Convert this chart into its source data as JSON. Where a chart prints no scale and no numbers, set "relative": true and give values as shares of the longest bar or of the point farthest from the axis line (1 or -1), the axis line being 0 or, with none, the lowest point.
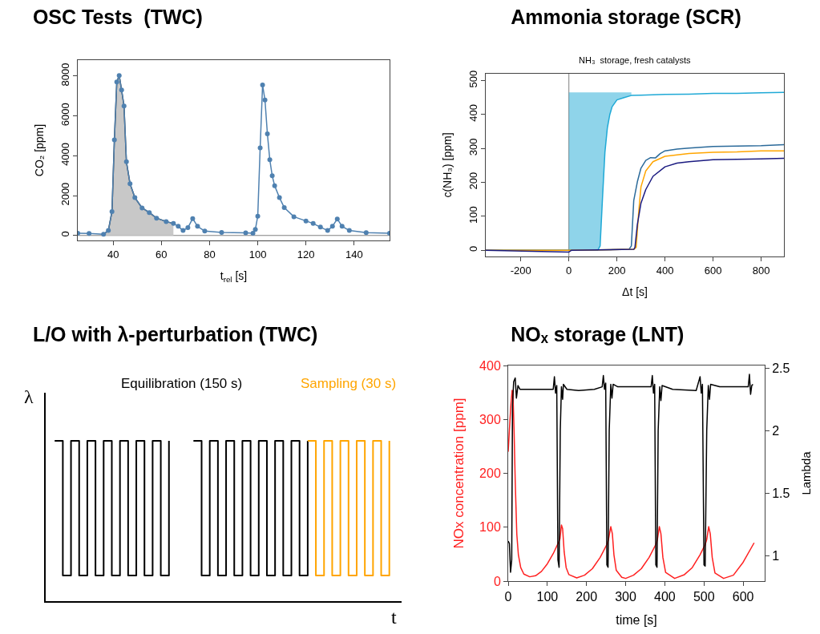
{
  "chart_data": [
    {
      "type": "line",
      "title": "OSC Tests  (TWC)",
      "xlabel": "t$_{rel}$ [s]",
      "ylabel": "CO₂ [ppm]",
      "xlim": [
        25.3,
        154.7
      ],
      "ylim": [
        -250,
        8800
      ],
      "xticks": [
        40,
        60,
        80,
        100,
        120,
        140
      ],
      "yticks": [
        0,
        2000,
        4000,
        6000,
        8000
      ],
      "grid": false,
      "marker": "circle",
      "ref_lines": [
        {
          "axis": "y",
          "value": 0,
          "color": "#808080"
        }
      ],
      "series": [
        {
          "type": "area",
          "marker": "none",
          "color": "#c8c8c8",
          "x": [
            36,
            38,
            39.5,
            40.5,
            41.5,
            42.5,
            43.5,
            44.5,
            45.5,
            47,
            49,
            52,
            55,
            58,
            62,
            65
          ],
          "values": [
            60,
            250,
            1200,
            4800,
            7700,
            8030,
            7300,
            6500,
            3700,
            2600,
            1900,
            1380,
            1150,
            870,
            700,
            600
          ]
        },
        {
          "type": "line",
          "color": "#4f81b0",
          "x": [
            25.3,
            30,
            36,
            38,
            39.5,
            40.5,
            41.5,
            42.5,
            43.5,
            44.5,
            45.5,
            47,
            49,
            52,
            55,
            58,
            62,
            65,
            67,
            69,
            71,
            73,
            75,
            78,
            85,
            95,
            98,
            99,
            100,
            101,
            102,
            103,
            104,
            105,
            106,
            107,
            109,
            111,
            115,
            120,
            123,
            126,
            129,
            131,
            133,
            135,
            138,
            145,
            154.7
          ],
          "values": [
            110,
            100,
            60,
            250,
            1200,
            4800,
            7700,
            8030,
            7300,
            6500,
            3700,
            2600,
            1900,
            1380,
            1150,
            870,
            700,
            600,
            460,
            250,
            390,
            850,
            460,
            220,
            150,
            130,
            110,
            300,
            970,
            4400,
            7550,
            6800,
            5100,
            3800,
            3000,
            2500,
            1900,
            1400,
            940,
            730,
            600,
            420,
            250,
            460,
            830,
            460,
            250,
            140,
            110
          ]
        }
      ]
    },
    {
      "type": "line",
      "title": "Ammonia storage (SCR)",
      "subtitle": "NH₃  storage, fresh catalysts",
      "xlabel": "Δt [s]",
      "ylabel": "c(NH₃) [ppm]",
      "xlim": [
        -346,
        895
      ],
      "ylim": [
        -18,
        520
      ],
      "xticks": [
        -200,
        0,
        200,
        400,
        600,
        800
      ],
      "yticks": [
        0,
        100,
        200,
        300,
        400,
        500
      ],
      "grid": false,
      "ref_lines": [
        {
          "axis": "x",
          "value": 0,
          "color": "#808080"
        }
      ],
      "series": [
        {
          "color": "#1fa9d6",
          "x": [
            -346,
            0,
            120,
            130,
            140,
            150,
            160,
            170,
            180,
            200,
            230,
            260,
            300,
            400,
            500,
            600,
            700,
            800,
            895
          ],
          "values": [
            0,
            0,
            0,
            13,
            155,
            289,
            360,
            399,
            423,
            443,
            450,
            456,
            457,
            459,
            460,
            462,
            462,
            464,
            465
          ],
          "lower": [
            null,
            0,
            0,
            13,
            155,
            289,
            360,
            399,
            423,
            443,
            450,
            456,
            null,
            null,
            null,
            null,
            null,
            null,
            null
          ],
          "upper": [
            null,
            465,
            465,
            465,
            465,
            465,
            465,
            465,
            465,
            465,
            465,
            465,
            null,
            null,
            null,
            null,
            null,
            null,
            null
          ]
        },
        {
          "color": "#2b6a9a",
          "x": [
            -346,
            0,
            250,
            260,
            270,
            285,
            300,
            320,
            340,
            360,
            380,
            400,
            450,
            500,
            600,
            700,
            800,
            895
          ],
          "values": [
            0,
            0,
            3,
            13,
            147,
            202,
            242,
            265,
            273,
            272,
            285,
            293,
            298,
            301,
            306,
            307,
            308,
            311
          ]
        },
        {
          "color": "#ffa500",
          "x": [
            -346,
            0,
            270,
            280,
            290,
            300,
            320,
            350,
            400,
            500,
            600,
            700,
            800,
            895
          ],
          "values": [
            0,
            0,
            3,
            9,
            108,
            187,
            234,
            261,
            277,
            285,
            289,
            290,
            293,
            293
          ]
        },
        {
          "color": "#1a1a80",
          "x": [
            -346,
            0,
            10,
            270,
            275,
            285,
            300,
            320,
            350,
            400,
            450,
            500,
            600,
            700,
            800,
            895
          ],
          "values": [
            0,
            -5,
            0,
            3,
            9,
            76,
            139,
            179,
            218,
            246,
            257,
            261,
            267,
            268,
            269,
            271
          ]
        }
      ]
    },
    {
      "type": "step",
      "relative": true,
      "title": "L/O with λ-perturbation (TWC)",
      "xlabel": "t",
      "ylabel": "λ",
      "grid": false,
      "annotations": [
        "Equilibration (150 s)",
        "Sampling (30 s)"
      ],
      "categories": [
        null,
        null,
        null,
        null,
        null,
        null,
        null,
        null,
        null,
        null,
        null,
        null,
        null,
        null,
        null,
        null,
        null,
        null,
        null,
        null,
        null,
        null,
        null,
        null,
        null,
        null,
        null,
        null,
        null,
        null,
        null,
        null,
        null,
        null,
        null,
        null,
        null,
        null,
        null,
        null,
        null,
        null
      ],
      "series": [
        {
          "color": "#000000",
          "values": [
            1,
            0.16,
            1,
            0.16,
            1,
            0.16,
            1,
            0.16,
            1,
            0.16,
            1,
            0.16,
            1,
            0.16,
            1,
            null,
            null,
            1,
            0.16,
            1,
            0.16,
            1,
            0.16,
            1,
            0.16,
            1,
            0.16,
            1,
            0.16,
            1,
            0.16,
            1,
            null,
            null,
            null,
            null,
            null,
            null,
            null,
            null,
            null,
            null
          ]
        },
        {
          "color": "#ffa500",
          "values": [
            null,
            null,
            null,
            null,
            null,
            null,
            null,
            null,
            null,
            null,
            null,
            null,
            null,
            null,
            null,
            null,
            null,
            null,
            null,
            null,
            null,
            null,
            null,
            null,
            null,
            null,
            null,
            null,
            null,
            null,
            null,
            1,
            0.16,
            1,
            0.16,
            1,
            0.16,
            1,
            0.16,
            1,
            0.16,
            1
          ]
        }
      ]
    },
    {
      "type": "line",
      "title": "NOₓ storage (LNT)",
      "xlabel": "time [s]",
      "ylabel": "NOx concentration [ppm]",
      "y2label": "Lambda",
      "xlim": [
        0,
        655
      ],
      "ylim": [
        0,
        400
      ],
      "y2lim": [
        0.8,
        2.52
      ],
      "xticks": [
        0,
        100,
        200,
        300,
        400,
        500,
        600
      ],
      "yticks": [
        0,
        100,
        200,
        300,
        400
      ],
      "y2ticks": [
        1,
        1.5,
        2,
        2.5
      ],
      "grid": false,
      "series": [
        {
          "color": "#ff2020",
          "x": [
            0,
            3,
            7,
            10,
            12,
            15,
            18,
            22,
            26,
            32,
            40,
            55,
            70,
            85,
            100,
            115,
            128,
            132,
            136,
            139,
            143,
            148,
            155,
            175,
            195,
            215,
            235,
            252,
            256,
            262,
            266,
            270,
            276,
            290,
            300,
            320,
            340,
            360,
            377,
            381,
            386,
            390,
            395,
            402,
            425,
            450,
            470,
            490,
            503,
            507,
            512,
            516,
            521,
            528,
            550,
            575,
            600,
            628
          ],
          "values": [
            240,
            280,
            328,
            354,
            352,
            280,
            184,
            87,
            49,
            25,
            13,
            8,
            10,
            18,
            32,
            51,
            71,
            78,
            104,
            97,
            54,
            25,
            12,
            6,
            11,
            23,
            44,
            68,
            77,
            101,
            88,
            49,
            20,
            7,
            5,
            11,
            23,
            44,
            68,
            77,
            101,
            88,
            44,
            16,
            5,
            12,
            25,
            49,
            68,
            77,
            101,
            88,
            44,
            15,
            5,
            11,
            35,
            71
          ]
        },
        {
          "color": "#000000",
          "axis": "y2",
          "x": [
            0,
            3,
            6,
            9,
            11,
            14,
            18,
            21,
            25,
            30,
            60,
            90,
            115,
            118,
            121,
            124,
            127,
            130,
            133,
            136,
            139,
            141,
            150,
            180,
            220,
            240,
            243,
            246,
            249,
            252,
            255,
            258,
            262,
            265,
            268,
            280,
            320,
            365,
            368,
            371,
            374,
            377,
            380,
            383,
            387,
            390,
            393,
            420,
            480,
            490,
            493,
            496,
            500,
            503,
            507,
            511,
            514,
            517,
            540,
            600,
            613,
            616,
            619,
            622,
            625
          ],
          "values": [
            1.12,
            1.1,
            0.87,
            0.97,
            2.21,
            2.39,
            2.42,
            2.26,
            2.36,
            2.33,
            2.33,
            2.33,
            2.33,
            2.43,
            2.3,
            2.36,
            0.97,
            0.91,
            2.0,
            2.35,
            2.25,
            2.37,
            2.33,
            2.32,
            2.33,
            2.35,
            2.44,
            2.33,
            2.38,
            0.93,
            0.91,
            2.0,
            2.37,
            2.26,
            2.37,
            2.35,
            2.35,
            2.35,
            2.44,
            2.3,
            2.37,
            0.93,
            0.91,
            2.0,
            2.35,
            2.24,
            2.36,
            2.33,
            2.32,
            2.43,
            2.3,
            2.37,
            0.93,
            0.92,
            2.0,
            2.36,
            2.25,
            2.37,
            2.35,
            2.35,
            2.35,
            2.45,
            2.29,
            2.36,
            2.37
          ]
        }
      ]
    }
  ]
}
